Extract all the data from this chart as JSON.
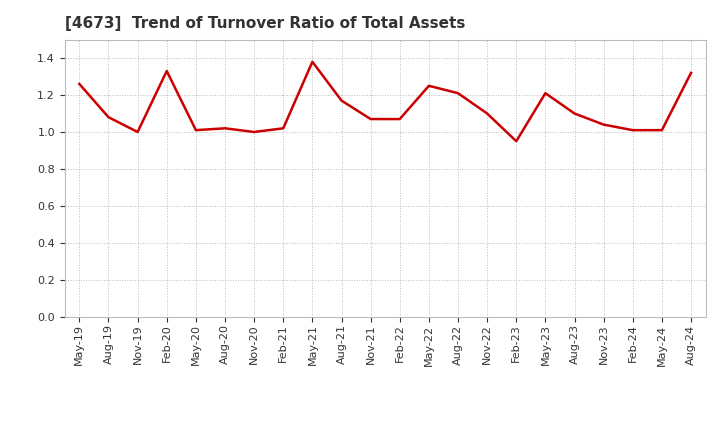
{
  "title": "[4673]  Trend of Turnover Ratio of Total Assets",
  "title_fontsize": 11,
  "line_color": "#CC0000",
  "line_width": 1.8,
  "background_color": "#FFFFFF",
  "plot_bg_color": "#FFFFFF",
  "grid_color": "#BBBBBB",
  "ylim": [
    0.0,
    1.5
  ],
  "yticks": [
    0.0,
    0.2,
    0.4,
    0.6,
    0.8,
    1.0,
    1.2,
    1.4
  ],
  "labels": [
    "May-19",
    "Aug-19",
    "Nov-19",
    "Feb-20",
    "May-20",
    "Aug-20",
    "Nov-20",
    "Feb-21",
    "May-21",
    "Aug-21",
    "Nov-21",
    "Feb-22",
    "May-22",
    "Aug-22",
    "Nov-22",
    "Feb-23",
    "May-23",
    "Aug-23",
    "Nov-23",
    "Feb-24",
    "May-24",
    "Aug-24"
  ],
  "values": [
    1.26,
    1.08,
    1.0,
    1.33,
    1.01,
    1.02,
    1.0,
    1.02,
    1.38,
    1.17,
    1.07,
    1.07,
    1.25,
    1.21,
    1.1,
    0.95,
    1.21,
    1.1,
    1.04,
    1.01,
    1.01,
    1.32
  ],
  "tick_fontsize": 8,
  "title_color": "#333333"
}
